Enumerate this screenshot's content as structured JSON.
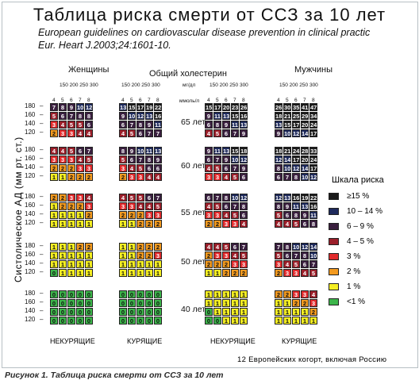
{
  "title": "Таблица  риска смерти от ССЗ  за 10 лет",
  "reference": {
    "line1": "European guidelines on cardiovascular disease prevention in clinical practic",
    "line2": "Eur. Heart J.2003;24:1601-10."
  },
  "headers": {
    "women": "Женщины",
    "cholesterol": "Общий  холестерин",
    "men": "Мужчины",
    "chol_unit_mg": "мг/дл",
    "chol_unit_mmol": "ммоль/л",
    "mg_ticks": "150 200  250 300",
    "mmol_ticks": [
      "4",
      "5",
      "6",
      "7",
      "8"
    ],
    "y_axis_label": "Систолическое  АД  (мм рт. ст.)",
    "bp_values": [
      "180",
      "160",
      "140",
      "120"
    ]
  },
  "columns": [
    "НЕКУРЯЩИЕ",
    "КУРЯЩИЕ",
    "НЕКУРЯЩИЕ",
    "КУРЯЩИЕ"
  ],
  "ages": [
    "65 лет",
    "60 лет",
    "55 лет",
    "50 лет",
    "40 лет"
  ],
  "legend": {
    "title": "Шкала  риска",
    "items": [
      {
        "label": "≥15 %",
        "color": "#1a1a1a"
      },
      {
        "label": "10 – 14 %",
        "color": "#1e2a5c"
      },
      {
        "label": "6 – 9 %",
        "color": "#3a1f3f"
      },
      {
        "label": "4 – 5 %",
        "color": "#9b1f2a"
      },
      {
        "label": "3 %",
        "color": "#e12a2c"
      },
      {
        "label": "2 %",
        "color": "#f39a1f"
      },
      {
        "label": "1 %",
        "color": "#f4ee22"
      },
      {
        "label": "<1 %",
        "color": "#3cb54a"
      }
    ]
  },
  "risk_tables": [
    [
      [
        [
          7,
          8,
          9,
          10,
          12
        ],
        [
          5,
          6,
          7,
          8,
          8
        ],
        [
          3,
          4,
          5,
          5,
          6
        ],
        [
          2,
          3,
          3,
          4,
          4
        ]
      ],
      [
        [
          13,
          15,
          17,
          19,
          22
        ],
        [
          9,
          10,
          12,
          13,
          16
        ],
        [
          6,
          7,
          8,
          9,
          11
        ],
        [
          4,
          5,
          6,
          7,
          7
        ]
      ],
      [
        [
          15,
          17,
          20,
          23,
          26
        ],
        [
          9,
          11,
          13,
          15,
          16
        ],
        [
          6,
          8,
          9,
          11,
          13
        ],
        [
          4,
          5,
          6,
          7,
          9
        ]
      ],
      [
        [
          26,
          30,
          35,
          41,
          47
        ],
        [
          18,
          21,
          25,
          29,
          34
        ],
        [
          13,
          15,
          17,
          20,
          24
        ],
        [
          9,
          10,
          12,
          14,
          17
        ]
      ]
    ],
    [
      [
        [
          4,
          4,
          5,
          6,
          7
        ],
        [
          3,
          3,
          3,
          4,
          5
        ],
        [
          2,
          2,
          2,
          3,
          3
        ],
        [
          1,
          1,
          2,
          2,
          2
        ]
      ],
      [
        [
          8,
          9,
          10,
          11,
          13
        ],
        [
          5,
          6,
          7,
          8,
          9
        ],
        [
          3,
          4,
          5,
          6,
          6
        ],
        [
          2,
          3,
          3,
          4,
          4
        ]
      ],
      [
        [
          9,
          11,
          13,
          15,
          18
        ],
        [
          6,
          7,
          9,
          10,
          12
        ],
        [
          4,
          5,
          6,
          7,
          9
        ],
        [
          3,
          3,
          4,
          5,
          6
        ]
      ],
      [
        [
          18,
          21,
          24,
          28,
          33
        ],
        [
          12,
          14,
          17,
          20,
          24
        ],
        [
          8,
          10,
          12,
          14,
          17
        ],
        [
          6,
          7,
          8,
          10,
          12
        ]
      ]
    ],
    [
      [
        [
          2,
          2,
          3,
          3,
          4
        ],
        [
          1,
          2,
          2,
          2,
          3
        ],
        [
          1,
          1,
          1,
          1,
          2
        ],
        [
          1,
          1,
          1,
          1,
          1
        ]
      ],
      [
        [
          4,
          5,
          5,
          6,
          7
        ],
        [
          3,
          3,
          4,
          4,
          5
        ],
        [
          2,
          2,
          2,
          3,
          3
        ],
        [
          1,
          1,
          2,
          2,
          2
        ]
      ],
      [
        [
          6,
          7,
          8,
          10,
          12
        ],
        [
          4,
          5,
          6,
          7,
          8
        ],
        [
          3,
          3,
          4,
          5,
          6
        ],
        [
          2,
          2,
          3,
          3,
          4
        ]
      ],
      [
        [
          12,
          13,
          16,
          19,
          22
        ],
        [
          8,
          9,
          11,
          13,
          16
        ],
        [
          5,
          6,
          8,
          9,
          11
        ],
        [
          4,
          4,
          5,
          6,
          8
        ]
      ]
    ],
    [
      [
        [
          1,
          1,
          1,
          2,
          2
        ],
        [
          1,
          1,
          1,
          1,
          1
        ],
        [
          1,
          1,
          1,
          1,
          1
        ],
        [
          0,
          1,
          1,
          1,
          1
        ]
      ],
      [
        [
          1,
          1,
          2,
          2,
          2
        ],
        [
          1,
          1,
          2,
          2,
          3
        ],
        [
          1,
          1,
          1,
          1,
          1
        ],
        [
          1,
          1,
          1,
          1,
          1
        ]
      ],
      [
        [
          4,
          4,
          5,
          6,
          7
        ],
        [
          2,
          3,
          3,
          4,
          5
        ],
        [
          2,
          2,
          2,
          3,
          3
        ],
        [
          1,
          1,
          2,
          2,
          2
        ]
      ],
      [
        [
          7,
          8,
          10,
          12,
          14
        ],
        [
          5,
          6,
          7,
          8,
          10
        ],
        [
          3,
          4,
          5,
          6,
          7
        ],
        [
          2,
          3,
          3,
          4,
          5
        ]
      ]
    ],
    [
      [
        [
          0,
          0,
          0,
          0,
          0
        ],
        [
          0,
          0,
          0,
          0,
          0
        ],
        [
          0,
          0,
          0,
          0,
          0
        ],
        [
          0,
          0,
          0,
          0,
          0
        ]
      ],
      [
        [
          0,
          0,
          0,
          0,
          0
        ],
        [
          0,
          0,
          0,
          0,
          0
        ],
        [
          0,
          0,
          0,
          0,
          0
        ],
        [
          0,
          0,
          0,
          0,
          0
        ]
      ],
      [
        [
          1,
          1,
          1,
          1,
          1
        ],
        [
          1,
          1,
          1,
          1,
          1
        ],
        [
          0,
          1,
          1,
          1,
          1
        ],
        [
          0,
          0,
          1,
          1,
          1
        ]
      ],
      [
        [
          2,
          2,
          3,
          3,
          4
        ],
        [
          1,
          1,
          2,
          2,
          3
        ],
        [
          1,
          1,
          1,
          1,
          2
        ],
        [
          1,
          1,
          1,
          1,
          1
        ]
      ]
    ]
  ],
  "footer": "12 Европейских  когорт, включая  Россию",
  "caption": "Рисунок 1. Таблица риска смерти от ССЗ за 10 лет"
}
